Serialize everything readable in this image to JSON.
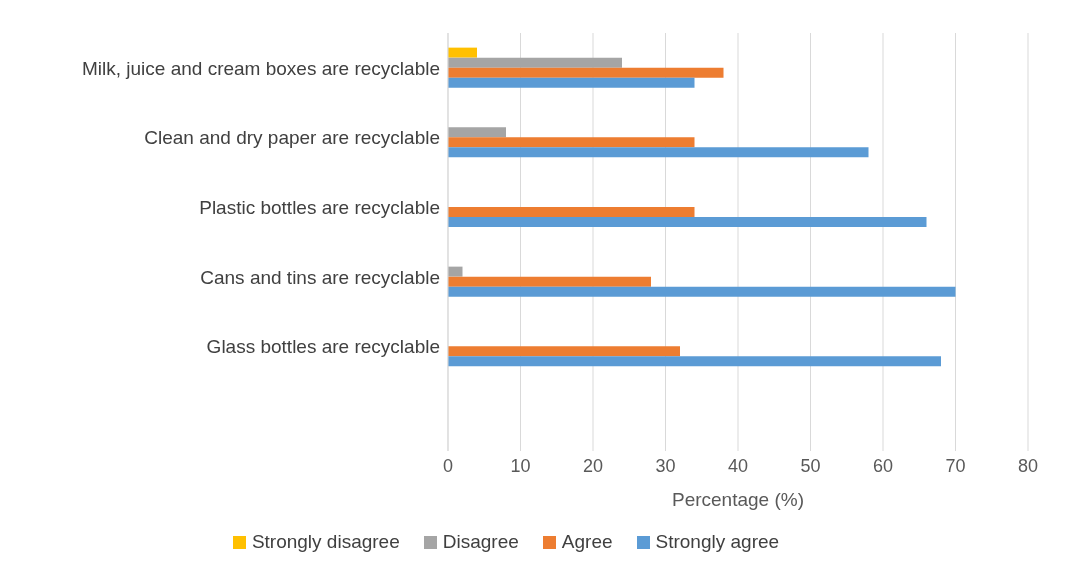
{
  "chart_data": {
    "type": "bar",
    "orientation": "horizontal",
    "xlabel": "Percentage (%)",
    "categories": [
      "Milk, juice and cream boxes are recyclable",
      "Clean and dry paper are recyclable",
      "Plastic bottles are recyclable",
      "Cans and tins are recyclable",
      "Glass bottles are recyclable",
      null
    ],
    "series": [
      {
        "name": "Strongly disagree",
        "color": "#ffc000",
        "values": [
          4,
          0,
          0,
          0,
          0,
          null
        ]
      },
      {
        "name": "Disagree",
        "color": "#a5a5a5",
        "values": [
          24,
          8,
          0,
          2,
          0,
          null
        ]
      },
      {
        "name": "Agree",
        "color": "#ed7d31",
        "values": [
          38,
          34,
          34,
          28,
          32,
          null
        ]
      },
      {
        "name": "Strongly agree",
        "color": "#5b9bd5",
        "values": [
          34,
          58,
          66,
          70,
          68,
          null
        ]
      }
    ],
    "xlim": [
      0,
      80
    ],
    "xticks": [
      0,
      10,
      20,
      30,
      40,
      50,
      60,
      70,
      80
    ],
    "grid": "x",
    "legend": "bottom"
  }
}
